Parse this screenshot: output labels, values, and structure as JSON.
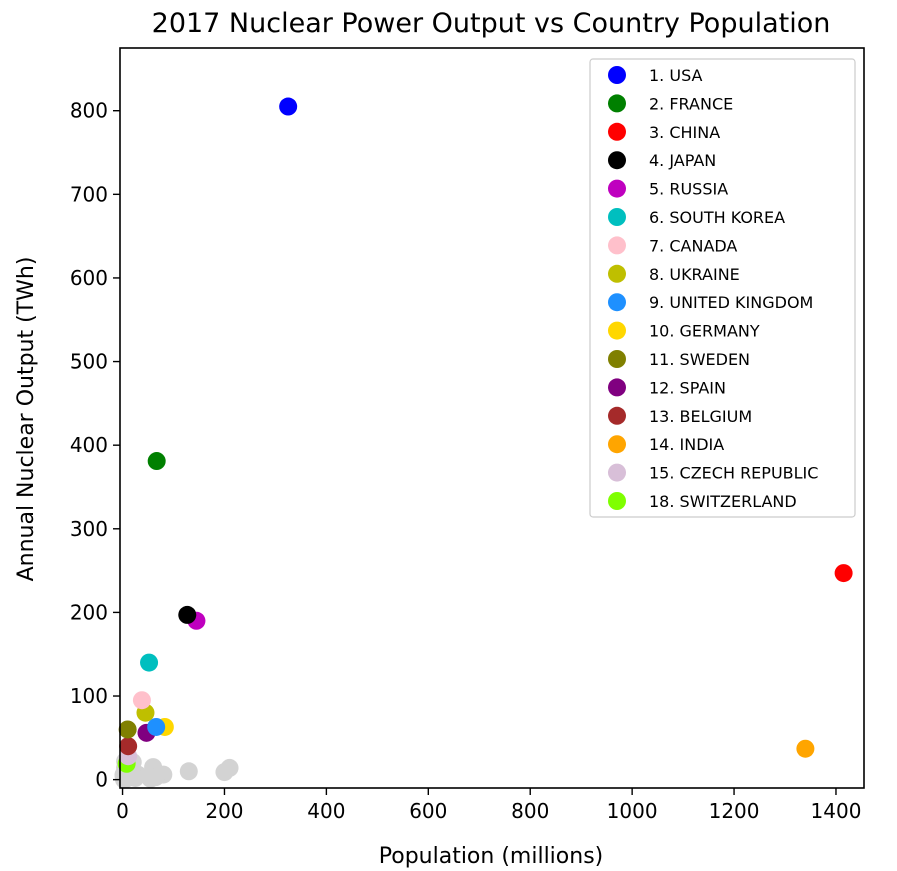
{
  "chart_data": {
    "type": "scatter",
    "title": "2017 Nuclear Power Output vs Country Population",
    "xlabel": "Population (millions)",
    "ylabel": "Annual Nuclear Output (TWh)",
    "xlim": [
      -5,
      1455
    ],
    "ylim": [
      -10,
      875
    ],
    "xticks": [
      0,
      200,
      400,
      600,
      800,
      1000,
      1200,
      1400
    ],
    "yticks": [
      0,
      100,
      200,
      300,
      400,
      500,
      600,
      700,
      800
    ],
    "grid": false,
    "legend_position": "top-right",
    "series": [
      {
        "name": "1. USA",
        "color": "#0000ff",
        "x": 325,
        "y": 805
      },
      {
        "name": "2. FRANCE",
        "color": "#008000",
        "x": 67,
        "y": 381
      },
      {
        "name": "3. CHINA",
        "color": "#ff0000",
        "x": 1415,
        "y": 247
      },
      {
        "name": "4. JAPAN",
        "color": "#000000",
        "x": 127,
        "y": 197
      },
      {
        "name": "5. RUSSIA",
        "color": "#bf00bf",
        "x": 145,
        "y": 190
      },
      {
        "name": "6. SOUTH KOREA",
        "color": "#00bfbf",
        "x": 52,
        "y": 140
      },
      {
        "name": "7. CANADA",
        "color": "#ffc0cb",
        "x": 38,
        "y": 95
      },
      {
        "name": "8. UKRAINE",
        "color": "#bfbf00",
        "x": 45,
        "y": 80
      },
      {
        "name": "9. UNITED KINGDOM",
        "color": "#1e90ff",
        "x": 66,
        "y": 63
      },
      {
        "name": "10. GERMANY",
        "color": "#ffd700",
        "x": 83,
        "y": 63
      },
      {
        "name": "11. SWEDEN",
        "color": "#808000",
        "x": 10,
        "y": 60
      },
      {
        "name": "12. SPAIN",
        "color": "#800080",
        "x": 47,
        "y": 56
      },
      {
        "name": "13. BELGIUM",
        "color": "#a52a2a",
        "x": 11,
        "y": 40
      },
      {
        "name": "14. INDIA",
        "color": "#ffa500",
        "x": 1340,
        "y": 37
      },
      {
        "name": "15. CZECH REPUBLIC",
        "color": "#d8bfd8",
        "x": 11,
        "y": 28
      },
      {
        "name": "18. SWITZERLAND",
        "color": "#7fff00",
        "x": 8,
        "y": 19
      }
    ],
    "other_points": {
      "color": "#d3d3d3",
      "points": [
        {
          "x": 5,
          "y": 22
        },
        {
          "x": 20,
          "y": 21
        },
        {
          "x": 9,
          "y": 15
        },
        {
          "x": 17,
          "y": 12
        },
        {
          "x": 30,
          "y": 6
        },
        {
          "x": 2,
          "y": 6
        },
        {
          "x": 5,
          "y": 14
        },
        {
          "x": 60,
          "y": 15
        },
        {
          "x": 80,
          "y": 6
        },
        {
          "x": 65,
          "y": 3
        },
        {
          "x": 55,
          "y": 1
        },
        {
          "x": 130,
          "y": 10
        },
        {
          "x": 200,
          "y": 9
        },
        {
          "x": 210,
          "y": 14
        },
        {
          "x": 2,
          "y": 4
        },
        {
          "x": 10,
          "y": 2
        },
        {
          "x": 15,
          "y": 9
        },
        {
          "x": 25,
          "y": 2
        },
        {
          "x": 7,
          "y": 1
        },
        {
          "x": 3,
          "y": 0
        }
      ]
    }
  }
}
